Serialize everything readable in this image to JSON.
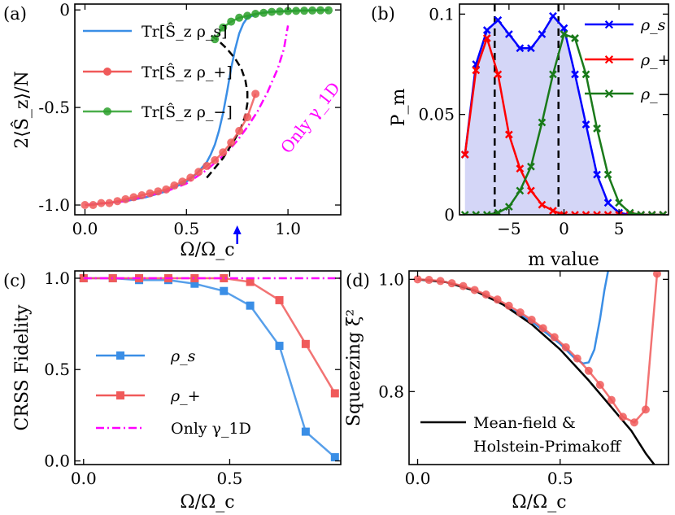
{
  "chart_data": [
    {
      "panel": "(a)",
      "type": "line",
      "xlabel": "Ω/Ω_c",
      "ylabel": "2⟨Ŝ_z⟩/N",
      "xlim": [
        -0.05,
        1.26
      ],
      "ylim": [
        -1.05,
        0.03
      ],
      "xticks": [
        {
          "v": 0.0,
          "t": "0.0"
        },
        {
          "v": 0.5,
          "t": "0.5"
        },
        {
          "v": 1.0,
          "t": "1.0"
        }
      ],
      "yticks": [
        {
          "v": 0.0,
          "t": "0"
        },
        {
          "v": -0.5,
          "t": "-0.5"
        },
        {
          "v": -1.0,
          "t": "-1.0"
        }
      ],
      "legend_position": "top-left",
      "arrow_at_x": 0.75,
      "arrow_color": "#0000ff",
      "series": [
        {
          "name": "Tr[Ŝ_z ρ_s]",
          "color": "#3a8ee6",
          "style": "solid",
          "marker": "none",
          "x": [
            0,
            0.1,
            0.2,
            0.3,
            0.4,
            0.5,
            0.55,
            0.6,
            0.62,
            0.64,
            0.66,
            0.68,
            0.7,
            0.72,
            0.74,
            0.76,
            0.78,
            0.8,
            0.85,
            0.9,
            1.0,
            1.1,
            1.2
          ],
          "y": [
            -1.0,
            -0.99,
            -0.98,
            -0.96,
            -0.93,
            -0.88,
            -0.84,
            -0.78,
            -0.74,
            -0.69,
            -0.62,
            -0.53,
            -0.42,
            -0.3,
            -0.2,
            -0.12,
            -0.07,
            -0.04,
            -0.02,
            -0.01,
            -0.005,
            -0.002,
            0.0
          ]
        },
        {
          "name": "Only γ_1D",
          "color": "#ff00ff",
          "style": "dashdot",
          "marker": "none",
          "x": [
            0,
            0.2,
            0.4,
            0.5,
            0.6,
            0.7,
            0.75,
            0.8,
            0.85,
            0.9,
            0.95,
            0.98,
            1.0
          ],
          "y": [
            -1.0,
            -0.98,
            -0.93,
            -0.89,
            -0.82,
            -0.73,
            -0.67,
            -0.6,
            -0.52,
            -0.42,
            -0.3,
            -0.2,
            -0.08
          ]
        },
        {
          "name": "",
          "color": "#000000",
          "style": "dashed",
          "marker": "none",
          "x": [
            0.6,
            0.64,
            0.68,
            0.71,
            0.74,
            0.77,
            0.79,
            0.8,
            0.8,
            0.79,
            0.77,
            0.74,
            0.7,
            0.66,
            0.62
          ],
          "y": [
            -0.86,
            -0.81,
            -0.76,
            -0.71,
            -0.66,
            -0.6,
            -0.54,
            -0.48,
            -0.42,
            -0.36,
            -0.3,
            -0.25,
            -0.2,
            -0.16,
            -0.13
          ]
        },
        {
          "name": "Tr[Ŝ_z ρ_+]",
          "color": "#f05a5a",
          "style": "solid",
          "marker": "circle",
          "x": [
            0,
            0.04,
            0.08,
            0.12,
            0.16,
            0.2,
            0.24,
            0.28,
            0.32,
            0.36,
            0.4,
            0.44,
            0.48,
            0.52,
            0.56,
            0.6,
            0.64,
            0.68,
            0.72,
            0.76,
            0.8,
            0.84
          ],
          "y": [
            -1.0,
            -1.0,
            -0.99,
            -0.99,
            -0.98,
            -0.97,
            -0.96,
            -0.95,
            -0.94,
            -0.93,
            -0.92,
            -0.9,
            -0.88,
            -0.86,
            -0.83,
            -0.8,
            -0.77,
            -0.73,
            -0.68,
            -0.62,
            -0.55,
            -0.43
          ]
        },
        {
          "name": "Tr[Ŝ_z ρ_−]",
          "color": "#2ca02c",
          "style": "solid",
          "marker": "circle",
          "x": [
            0.64,
            0.68,
            0.72,
            0.76,
            0.8,
            0.84,
            0.88,
            0.92,
            0.96,
            1.0,
            1.04,
            1.08,
            1.12,
            1.16,
            1.2
          ],
          "y": [
            -0.15,
            -0.09,
            -0.06,
            -0.04,
            -0.03,
            -0.02,
            -0.015,
            -0.01,
            -0.008,
            -0.006,
            -0.005,
            -0.004,
            -0.003,
            -0.002,
            -0.002
          ]
        }
      ],
      "annotation": "Only γ_1D",
      "annotation_color": "#ff00ff"
    },
    {
      "panel": "(b)",
      "type": "line",
      "xlabel": "m value",
      "ylabel": "P_m",
      "xlim": [
        -9.5,
        9.5
      ],
      "ylim": [
        0,
        0.105
      ],
      "xticks": [
        {
          "v": -5,
          "t": "−5"
        },
        {
          "v": 0,
          "t": "0"
        },
        {
          "v": 5,
          "t": "5"
        }
      ],
      "yticks": [
        {
          "v": 0,
          "t": "0"
        },
        {
          "v": 0.05,
          "t": "0.05"
        },
        {
          "v": 0.1,
          "t": "0.1"
        }
      ],
      "vlines": [
        -6.3,
        -0.5
      ],
      "fill_color": "#d4d6f7",
      "legend_position": "top-right",
      "series": [
        {
          "name": "ρ_s",
          "color": "#0000ff",
          "marker": "x",
          "x": [
            -9,
            -8,
            -7,
            -6,
            -5,
            -4,
            -3,
            -2,
            -1,
            0,
            1,
            2,
            3,
            4,
            5,
            6,
            7,
            8,
            9
          ],
          "y": [
            0.03,
            0.075,
            0.092,
            0.097,
            0.09,
            0.083,
            0.083,
            0.09,
            0.099,
            0.093,
            0.07,
            0.045,
            0.02,
            0.006,
            0.001,
            0,
            0,
            0,
            0
          ]
        },
        {
          "name": "ρ_+",
          "color": "#ff0000",
          "marker": "x",
          "x": [
            -9,
            -8,
            -7,
            -6,
            -5,
            -4,
            -3,
            -2,
            -1,
            0,
            1,
            2,
            3,
            4,
            5,
            6,
            7,
            8,
            9
          ],
          "y": [
            0.03,
            0.072,
            0.088,
            0.07,
            0.04,
            0.023,
            0.012,
            0.005,
            0.002,
            0,
            0,
            0,
            0,
            0,
            0,
            0,
            0,
            0,
            0
          ]
        },
        {
          "name": "ρ_−",
          "color": "#1a7a1a",
          "marker": "x",
          "x": [
            -9,
            -8,
            -7,
            -6,
            -5,
            -4,
            -3,
            -2,
            -1,
            0,
            1,
            2,
            3,
            4,
            5,
            6,
            7,
            8,
            9
          ],
          "y": [
            0,
            0,
            0,
            0.001,
            0.004,
            0.012,
            0.024,
            0.046,
            0.07,
            0.09,
            0.088,
            0.07,
            0.043,
            0.02,
            0.006,
            0.001,
            0,
            0,
            0
          ]
        }
      ]
    },
    {
      "panel": "(c)",
      "type": "line",
      "xlabel": "Ω/Ω_c",
      "ylabel": "CRSS Fidelity",
      "xlim": [
        -0.03,
        0.88
      ],
      "ylim": [
        -0.02,
        1.04
      ],
      "xticks": [
        {
          "v": 0.0,
          "t": "0.0"
        },
        {
          "v": 0.5,
          "t": "0.5"
        }
      ],
      "yticks": [
        {
          "v": 0.0,
          "t": "0.0"
        },
        {
          "v": 0.5,
          "t": "0.5"
        },
        {
          "v": 1.0,
          "t": "1.0"
        }
      ],
      "legend_position": "center-left",
      "series": [
        {
          "name": "ρ_s",
          "color": "#3a8ee6",
          "marker": "square",
          "x": [
            0,
            0.1,
            0.19,
            0.29,
            0.38,
            0.48,
            0.57,
            0.67,
            0.76,
            0.86
          ],
          "y": [
            1.0,
            1.0,
            0.99,
            0.99,
            0.97,
            0.93,
            0.85,
            0.63,
            0.16,
            0.02
          ]
        },
        {
          "name": "ρ_+",
          "color": "#f05a5a",
          "marker": "square",
          "x": [
            0,
            0.1,
            0.19,
            0.29,
            0.38,
            0.48,
            0.57,
            0.67,
            0.76,
            0.86
          ],
          "y": [
            1.0,
            1.0,
            1.0,
            1.0,
            1.0,
            1.0,
            0.98,
            0.88,
            0.64,
            0.37
          ]
        },
        {
          "name": "Only γ_1D",
          "color": "#ff00ff",
          "marker": "none",
          "style": "dashdot",
          "x": [
            0,
            0.88
          ],
          "y": [
            1.0,
            1.0
          ]
        }
      ]
    },
    {
      "panel": "(d)",
      "type": "line",
      "xlabel": "Ω/Ω_c",
      "ylabel": "Squeezing ξ²",
      "xlim": [
        -0.03,
        0.88
      ],
      "ylim": [
        0.67,
        1.015
      ],
      "xticks": [
        {
          "v": 0.0,
          "t": "0.0"
        },
        {
          "v": 0.5,
          "t": "0.5"
        }
      ],
      "yticks": [
        {
          "v": 0.8,
          "t": "0.8"
        },
        {
          "v": 1.0,
          "t": "1.0"
        }
      ],
      "legend_position": "bottom-left",
      "series": [
        {
          "name": "",
          "color": "#3a8ee6",
          "marker": "none",
          "x": [
            0,
            0.1,
            0.2,
            0.3,
            0.4,
            0.45,
            0.5,
            0.55,
            0.58,
            0.6,
            0.62,
            0.64,
            0.655,
            0.67
          ],
          "y": [
            1.0,
            0.995,
            0.98,
            0.955,
            0.925,
            0.905,
            0.885,
            0.86,
            0.85,
            0.852,
            0.875,
            0.93,
            0.98,
            1.02
          ]
        },
        {
          "name": "Mean-field & Holstein-Primakoff",
          "color": "#000000",
          "marker": "none",
          "x": [
            0,
            0.1,
            0.2,
            0.3,
            0.4,
            0.5,
            0.6,
            0.65,
            0.7,
            0.75,
            0.8,
            0.83
          ],
          "y": [
            1.0,
            0.995,
            0.98,
            0.955,
            0.92,
            0.875,
            0.82,
            0.79,
            0.76,
            0.73,
            0.69,
            0.67
          ]
        },
        {
          "name": "",
          "color": "#f05a5a",
          "marker": "circle",
          "x": [
            0,
            0.04,
            0.08,
            0.12,
            0.16,
            0.2,
            0.24,
            0.28,
            0.32,
            0.36,
            0.4,
            0.44,
            0.48,
            0.52,
            0.56,
            0.6,
            0.64,
            0.68,
            0.72,
            0.76,
            0.8,
            0.84
          ],
          "y": [
            1.0,
            0.999,
            0.997,
            0.993,
            0.988,
            0.981,
            0.973,
            0.964,
            0.953,
            0.941,
            0.928,
            0.913,
            0.897,
            0.879,
            0.859,
            0.837,
            0.812,
            0.785,
            0.755,
            0.745,
            0.768,
            1.01
          ]
        }
      ],
      "legend_text": [
        "Mean-field &",
        "Holstein-Primakoff"
      ]
    }
  ]
}
